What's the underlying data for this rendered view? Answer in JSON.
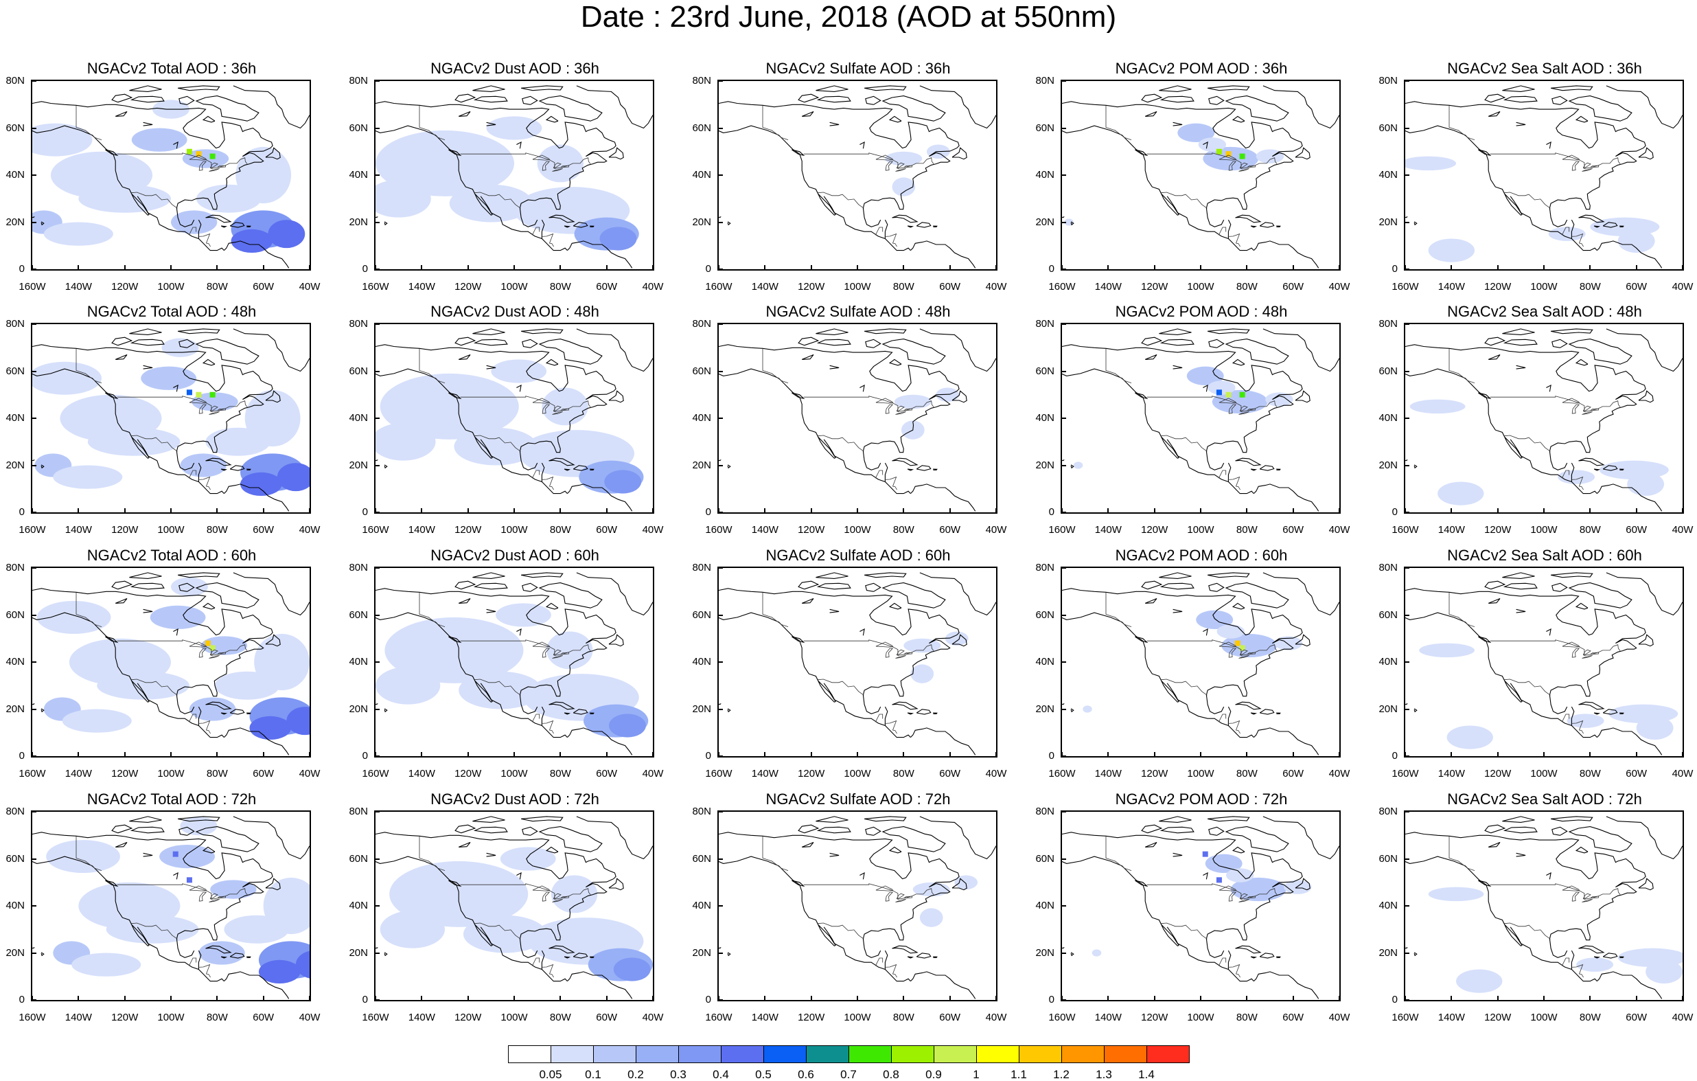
{
  "title": "Date : 23rd June, 2018 (AOD at 550nm)",
  "lat_labels": [
    "80N",
    "60N",
    "40N",
    "20N",
    "0"
  ],
  "lon_labels": [
    "160W",
    "140W",
    "120W",
    "100W",
    "80W",
    "60W",
    "40W"
  ],
  "panels": [
    {
      "title": "NGACv2 Total AOD : 36h",
      "var": "total",
      "hour": 36
    },
    {
      "title": "NGACv2 Dust AOD : 36h",
      "var": "dust",
      "hour": 36
    },
    {
      "title": "NGACv2 Sulfate AOD : 36h",
      "var": "sulfate",
      "hour": 36
    },
    {
      "title": "NGACv2 POM AOD : 36h",
      "var": "pom",
      "hour": 36
    },
    {
      "title": "NGACv2 Sea Salt AOD : 36h",
      "var": "seasalt",
      "hour": 36
    },
    {
      "title": "NGACv2 Total AOD : 48h",
      "var": "total",
      "hour": 48
    },
    {
      "title": "NGACv2 Dust AOD : 48h",
      "var": "dust",
      "hour": 48
    },
    {
      "title": "NGACv2 Sulfate AOD : 48h",
      "var": "sulfate",
      "hour": 48
    },
    {
      "title": "NGACv2 POM AOD : 48h",
      "var": "pom",
      "hour": 48
    },
    {
      "title": "NGACv2 Sea Salt AOD : 48h",
      "var": "seasalt",
      "hour": 48
    },
    {
      "title": "NGACv2 Total AOD : 60h",
      "var": "total",
      "hour": 60
    },
    {
      "title": "NGACv2 Dust AOD : 60h",
      "var": "dust",
      "hour": 60
    },
    {
      "title": "NGACv2 Sulfate AOD : 60h",
      "var": "sulfate",
      "hour": 60
    },
    {
      "title": "NGACv2 POM AOD : 60h",
      "var": "pom",
      "hour": 60
    },
    {
      "title": "NGACv2 Sea Salt AOD : 60h",
      "var": "seasalt",
      "hour": 60
    },
    {
      "title": "NGACv2 Total AOD : 72h",
      "var": "total",
      "hour": 72
    },
    {
      "title": "NGACv2 Dust AOD : 72h",
      "var": "dust",
      "hour": 72
    },
    {
      "title": "NGACv2 Sulfate AOD : 72h",
      "var": "sulfate",
      "hour": 72
    },
    {
      "title": "NGACv2 POM AOD : 72h",
      "var": "pom",
      "hour": 72
    },
    {
      "title": "NGACv2 Sea Salt  AOD : 72h",
      "var": "seasalt",
      "hour": 72
    }
  ],
  "colorbar": {
    "labels": [
      "0.05",
      "0.1",
      "0.2",
      "0.3",
      "0.4",
      "0.5",
      "0.6",
      "0.7",
      "0.8",
      "0.9",
      "1",
      "1.1",
      "1.2",
      "1.3",
      "1.4"
    ],
    "colors": [
      "#ffffff",
      "#d6e0fb",
      "#b7c8f8",
      "#98b0f6",
      "#7f98f3",
      "#5c6ff0",
      "#0a5ff4",
      "#0e8f8f",
      "#3fe800",
      "#9cf000",
      "#c8f050",
      "#ffff00",
      "#ffc800",
      "#ff9600",
      "#ff6e00",
      "#ff2d1e"
    ]
  }
}
